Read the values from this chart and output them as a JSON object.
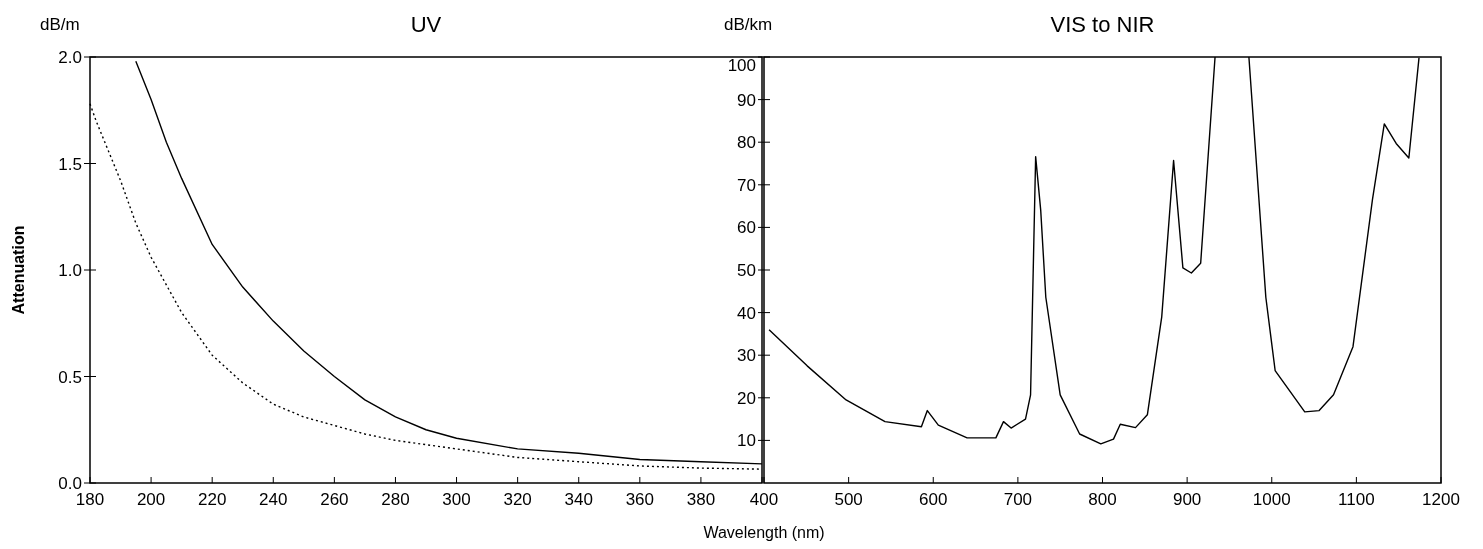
{
  "chart_data": [
    {
      "type": "line",
      "title": "UV",
      "ylabel": "Attenuation",
      "annotations": [
        "dB/m"
      ],
      "xlim": [
        180,
        400
      ],
      "ylim": [
        0,
        2
      ],
      "xticks": [
        180,
        200,
        220,
        240,
        260,
        280,
        300,
        320,
        340,
        360,
        380,
        {
          "value": 400,
          "label": null
        }
      ],
      "yticks": [
        {
          "value": 0,
          "label": "0.0"
        },
        0.5,
        {
          "value": 1,
          "label": "1.0"
        },
        1.5,
        {
          "value": 2,
          "label": "2.0"
        }
      ],
      "series": [
        {
          "color": "#000000",
          "line_style": "solid",
          "x": [
            195,
            200,
            205,
            210,
            220,
            230,
            240,
            250,
            260,
            270,
            280,
            290,
            300,
            320,
            340,
            360,
            380,
            400
          ],
          "values": [
            1.98,
            1.8,
            1.6,
            1.43,
            1.12,
            0.92,
            0.76,
            0.62,
            0.5,
            0.39,
            0.31,
            0.25,
            0.21,
            0.16,
            0.14,
            0.11,
            0.1,
            0.09
          ]
        },
        {
          "color": "#000000",
          "line_style": "dotted",
          "x": [
            180,
            182,
            190,
            195,
            200,
            210,
            220,
            230,
            240,
            250,
            260,
            270,
            280,
            300,
            320,
            340,
            360,
            380,
            400
          ],
          "values": [
            1.78,
            1.7,
            1.42,
            1.22,
            1.06,
            0.8,
            0.6,
            0.47,
            0.37,
            0.31,
            0.27,
            0.23,
            0.2,
            0.16,
            0.12,
            0.1,
            0.08,
            0.07,
            0.065
          ]
        }
      ]
    },
    {
      "type": "line",
      "title": "VIS to NIR",
      "xlabel": "Wavelength (nm)",
      "annotations": [
        "dB/km"
      ],
      "xlim": [
        400,
        1200
      ],
      "ylim": [
        0,
        100
      ],
      "xticks": [
        400,
        500,
        600,
        700,
        800,
        900,
        1000,
        1100,
        1200
      ],
      "yticks": [
        10,
        20,
        30,
        40,
        50,
        60,
        70,
        80,
        90,
        100
      ],
      "series": [
        {
          "color": "#000000",
          "line_style": "solid",
          "x": [
            406,
            451,
            497,
            543,
            586,
            593,
            606,
            640,
            674,
            683,
            692,
            709,
            715,
            721,
            727,
            733,
            750,
            773,
            798,
            813,
            821,
            839,
            853,
            870,
            884,
            895,
            905,
            916,
            933,
            950,
            973,
            993,
            1004,
            1039,
            1056,
            1073,
            1096,
            1119,
            1133,
            1147,
            1162,
            1174
          ],
          "values": [
            36,
            27.5,
            19.5,
            14.4,
            13.2,
            17,
            13.6,
            10.6,
            10.6,
            14.4,
            12.9,
            15,
            20.7,
            76.6,
            64,
            43.6,
            20.7,
            11.5,
            9.2,
            10.3,
            13.8,
            13,
            16,
            39,
            75.7,
            50.5,
            49.3,
            51.6,
            100,
            null,
            100,
            43.6,
            26.4,
            16.7,
            17,
            20.7,
            32,
            66.5,
            84.3,
            79.7,
            76.3,
            99.8
          ]
        }
      ]
    }
  ]
}
